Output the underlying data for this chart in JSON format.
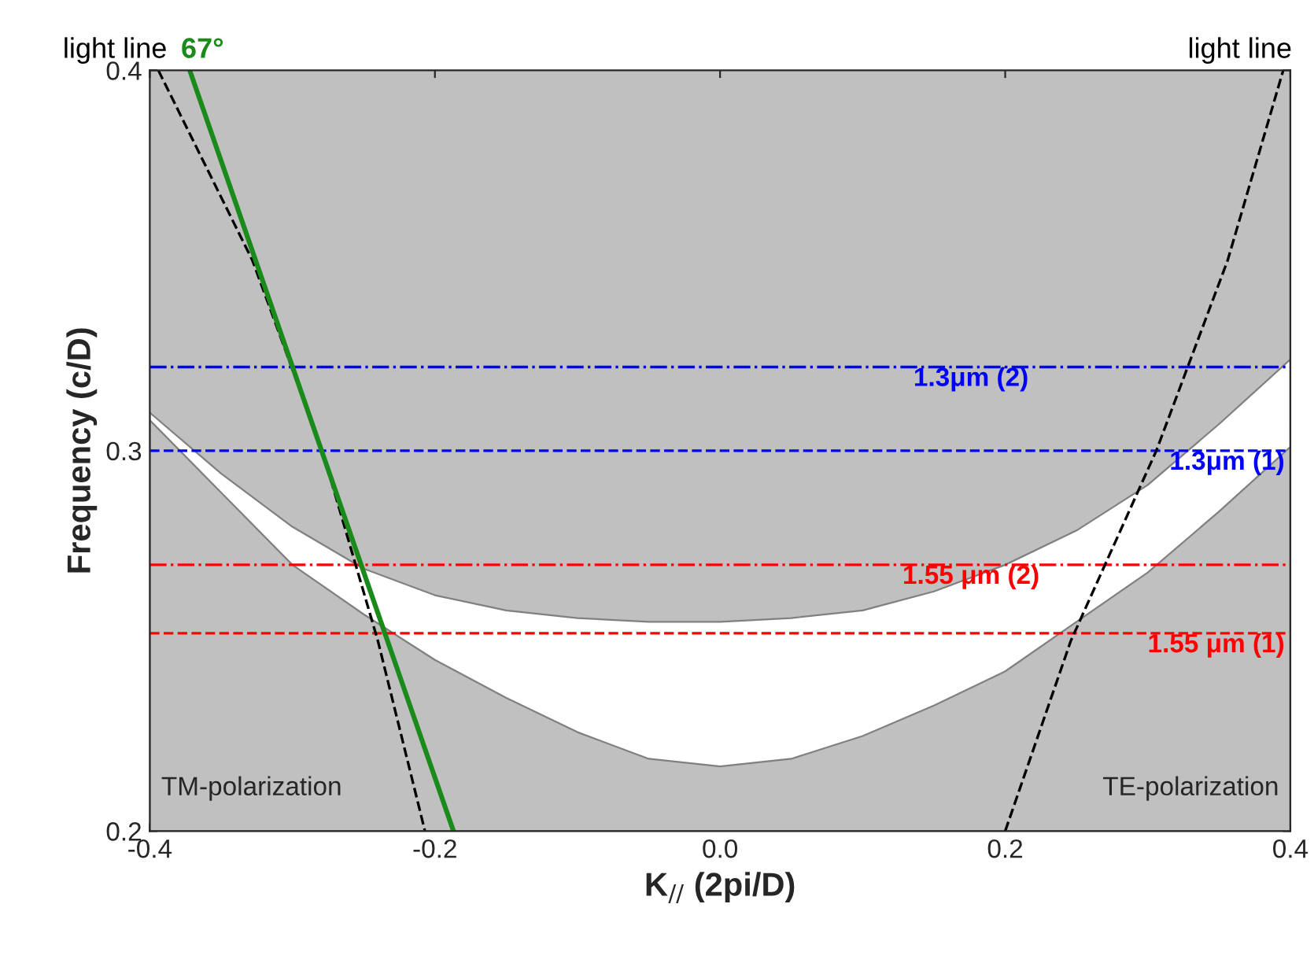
{
  "chart_data": {
    "type": "line",
    "xlabel": "K$_{//}$ (2pi/D)",
    "ylabel": "Frequency (c/D)",
    "xlim": [
      -0.4,
      0.4
    ],
    "xticks": [
      -0.4,
      -0.2,
      {
        "value": 0.0,
        "label": "0.0"
      },
      0.2,
      0.4
    ],
    "ylim": [
      0.2,
      0.4
    ],
    "yticks": [
      0.2,
      0.3,
      0.4
    ],
    "grid": false,
    "legend": false,
    "bands": [
      {
        "axis": "y",
        "from": 0.2,
        "to": 0.4,
        "color": "#c0c0c0"
      }
    ],
    "series": [
      {
        "type": "area",
        "color": "#ffffff",
        "x": [
          -0.4,
          -0.35,
          -0.3,
          -0.25,
          -0.2,
          -0.15,
          -0.1,
          -0.05,
          0.0,
          0.05,
          0.1,
          0.15,
          0.2,
          0.25,
          0.3,
          0.35,
          0.4
        ],
        "values": [
          0.31,
          0.294,
          0.28,
          0.269,
          0.262,
          0.258,
          0.256,
          0.255,
          0.255,
          0.256,
          0.258,
          0.263,
          0.27,
          0.279,
          0.291,
          0.307,
          0.324
        ]
      },
      {
        "type": "area",
        "color": "#c0c0c0",
        "x": [
          -0.4,
          -0.35,
          -0.3,
          -0.25,
          -0.2,
          -0.15,
          -0.1,
          -0.05,
          0.0,
          0.05,
          0.1,
          0.15,
          0.2,
          0.25,
          0.3,
          0.35,
          0.4
        ],
        "values": [
          0.308,
          0.289,
          0.27,
          0.257,
          0.245,
          0.235,
          0.226,
          0.219,
          0.217,
          0.219,
          0.225,
          0.233,
          0.242,
          0.255,
          0.268,
          0.284,
          0.301
        ]
      },
      {
        "name": "light line",
        "color": "#000000",
        "line_style": "dashed",
        "x": [
          -0.394,
          -0.328,
          -0.279,
          -0.24,
          -0.207
        ],
        "values": [
          0.4,
          0.35,
          0.3,
          0.25,
          0.2
        ]
      },
      {
        "name": "light line",
        "color": "#000000",
        "line_style": "dashed",
        "x": [
          0.2,
          0.246,
          0.306,
          0.356,
          0.395
        ],
        "values": [
          0.2,
          0.25,
          0.3,
          0.35,
          0.4
        ]
      },
      {
        "name": "67°",
        "color": "#1a8a1a",
        "line_style": "solid",
        "x": [
          -0.372,
          -0.187
        ],
        "values": [
          0.4,
          0.2
        ]
      }
    ],
    "ref_lines": [
      {
        "axis": "y",
        "value": 0.322,
        "label": "1.3μm (2)",
        "color": "#0000ff",
        "line_style": "dashdot"
      },
      {
        "axis": "y",
        "value": 0.3,
        "label": "1.3μm (1)",
        "color": "#0000ff",
        "line_style": "dashed"
      },
      {
        "axis": "y",
        "value": 0.27,
        "label": "1.55 μm (2)",
        "color": "#ff0000",
        "line_style": "dashdot"
      },
      {
        "axis": "y",
        "value": 0.252,
        "label": "1.55 μm (1)",
        "color": "#ff0000",
        "line_style": "dashed"
      }
    ],
    "annotations": [
      "TM-polarization",
      "TE-polarization"
    ]
  }
}
